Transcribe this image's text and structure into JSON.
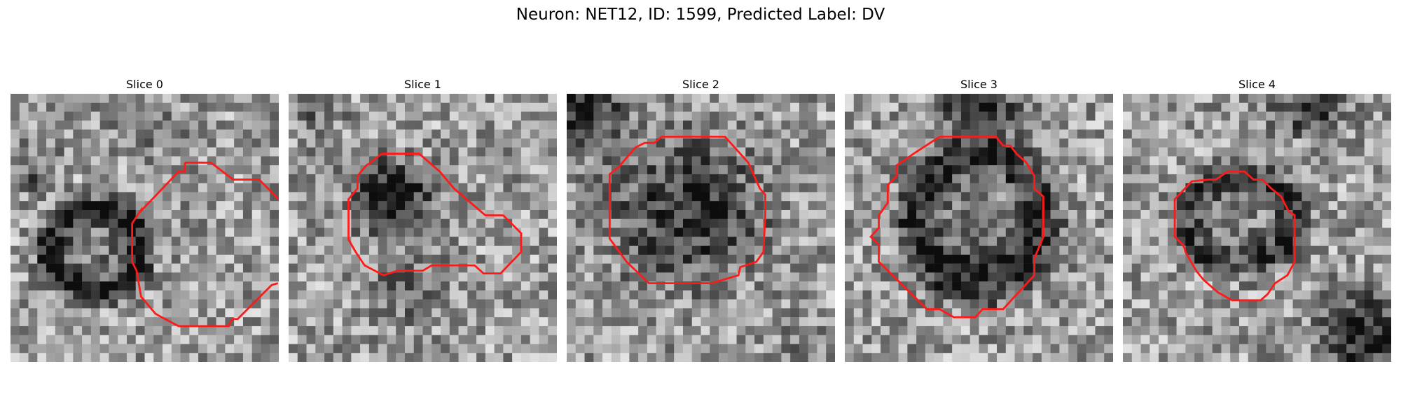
{
  "figure": {
    "title": "Neuron: NET12, ID: 1599, Predicted Label: DV"
  },
  "panels": [
    {
      "label": "Slice 0"
    },
    {
      "label": "Slice 1"
    },
    {
      "label": "Slice 2"
    },
    {
      "label": "Slice 3"
    },
    {
      "label": "Slice 4"
    }
  ],
  "colors": {
    "contour": "#ff1a1a",
    "background": "#ffffff"
  }
}
